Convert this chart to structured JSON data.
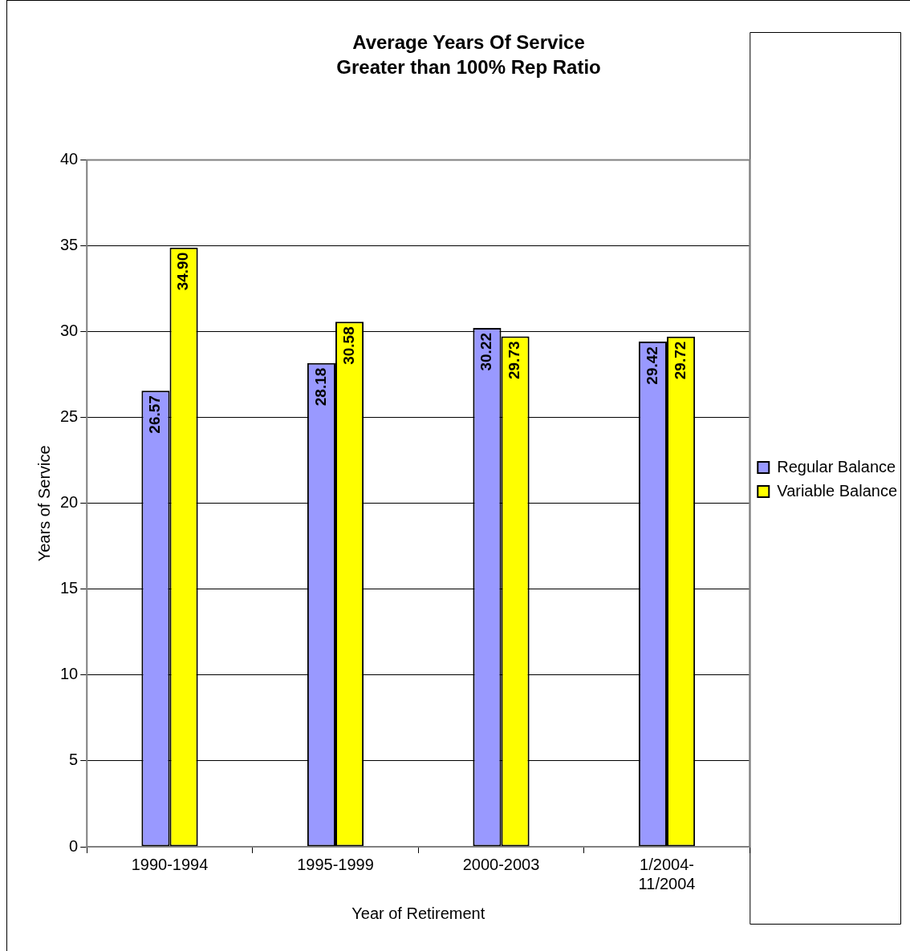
{
  "chart_data": {
    "type": "bar",
    "title": "Average Years Of Service",
    "subtitle": "Greater than 100% Rep Ratio",
    "xlabel": "Year of Retirement",
    "ylabel": "Years of Service",
    "categories": [
      "1990-1994",
      "1995-1999",
      "2000-2003",
      "1/2004-\n11/2004"
    ],
    "series": [
      {
        "name": "Regular Balance",
        "color": "#9999ff",
        "values": [
          26.57,
          28.18,
          30.22,
          29.42
        ]
      },
      {
        "name": "Variable Balance",
        "color": "#ffff00",
        "values": [
          34.9,
          30.58,
          29.73,
          29.72
        ]
      }
    ],
    "value_labels": [
      [
        "26.57",
        "28.18",
        "30.22",
        "29.42"
      ],
      [
        "34.90",
        "30.58",
        "29.73",
        "29.72"
      ]
    ],
    "ylim": [
      0,
      40
    ],
    "yticks": [
      0,
      5,
      10,
      15,
      20,
      25,
      30,
      35,
      40
    ],
    "grid": "y",
    "legend": "right"
  }
}
